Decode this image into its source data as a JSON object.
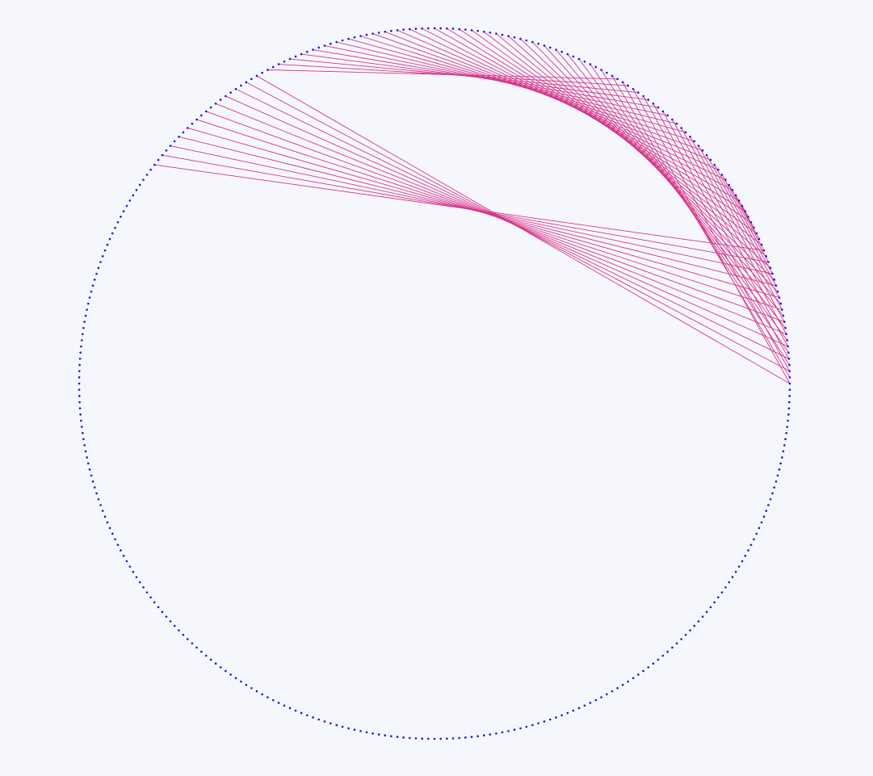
{
  "diagram": {
    "kind": "modular-multiplication-circle",
    "point_count": 360,
    "chord_pairs": [
      [
        0,
        58
      ],
      [
        2,
        56
      ],
      [
        4,
        54
      ],
      [
        6,
        52
      ],
      [
        8,
        50
      ],
      [
        10,
        48
      ],
      [
        12,
        46
      ],
      [
        14,
        44
      ],
      [
        16,
        42
      ],
      [
        18,
        40
      ],
      [
        20,
        38
      ],
      [
        22,
        36
      ],
      [
        24,
        34
      ],
      [
        26,
        32
      ],
      [
        28,
        30
      ],
      [
        1,
        60
      ],
      [
        3,
        62
      ],
      [
        5,
        64
      ],
      [
        7,
        66
      ],
      [
        9,
        68
      ],
      [
        11,
        70
      ],
      [
        13,
        72
      ],
      [
        15,
        74
      ],
      [
        17,
        76
      ],
      [
        19,
        78
      ],
      [
        21,
        80
      ],
      [
        23,
        82
      ],
      [
        25,
        84
      ],
      [
        27,
        86
      ],
      [
        29,
        88
      ],
      [
        31,
        90
      ],
      [
        33,
        92
      ],
      [
        35,
        94
      ],
      [
        37,
        96
      ],
      [
        39,
        98
      ],
      [
        41,
        100
      ],
      [
        43,
        102
      ],
      [
        45,
        104
      ],
      [
        47,
        106
      ],
      [
        49,
        108
      ],
      [
        51,
        110
      ],
      [
        53,
        112
      ],
      [
        55,
        114
      ],
      [
        57,
        116
      ],
      [
        59,
        118
      ],
      [
        0,
        120
      ],
      [
        2,
        122
      ],
      [
        4,
        124
      ],
      [
        6,
        126
      ],
      [
        8,
        128
      ],
      [
        10,
        130
      ],
      [
        12,
        132
      ],
      [
        14,
        134
      ],
      [
        16,
        136
      ],
      [
        18,
        138
      ],
      [
        20,
        140
      ],
      [
        22,
        142
      ]
    ],
    "colors": {
      "background": "#f6f7fc",
      "points": "#1a12e6",
      "chords": "#d6338a"
    }
  }
}
